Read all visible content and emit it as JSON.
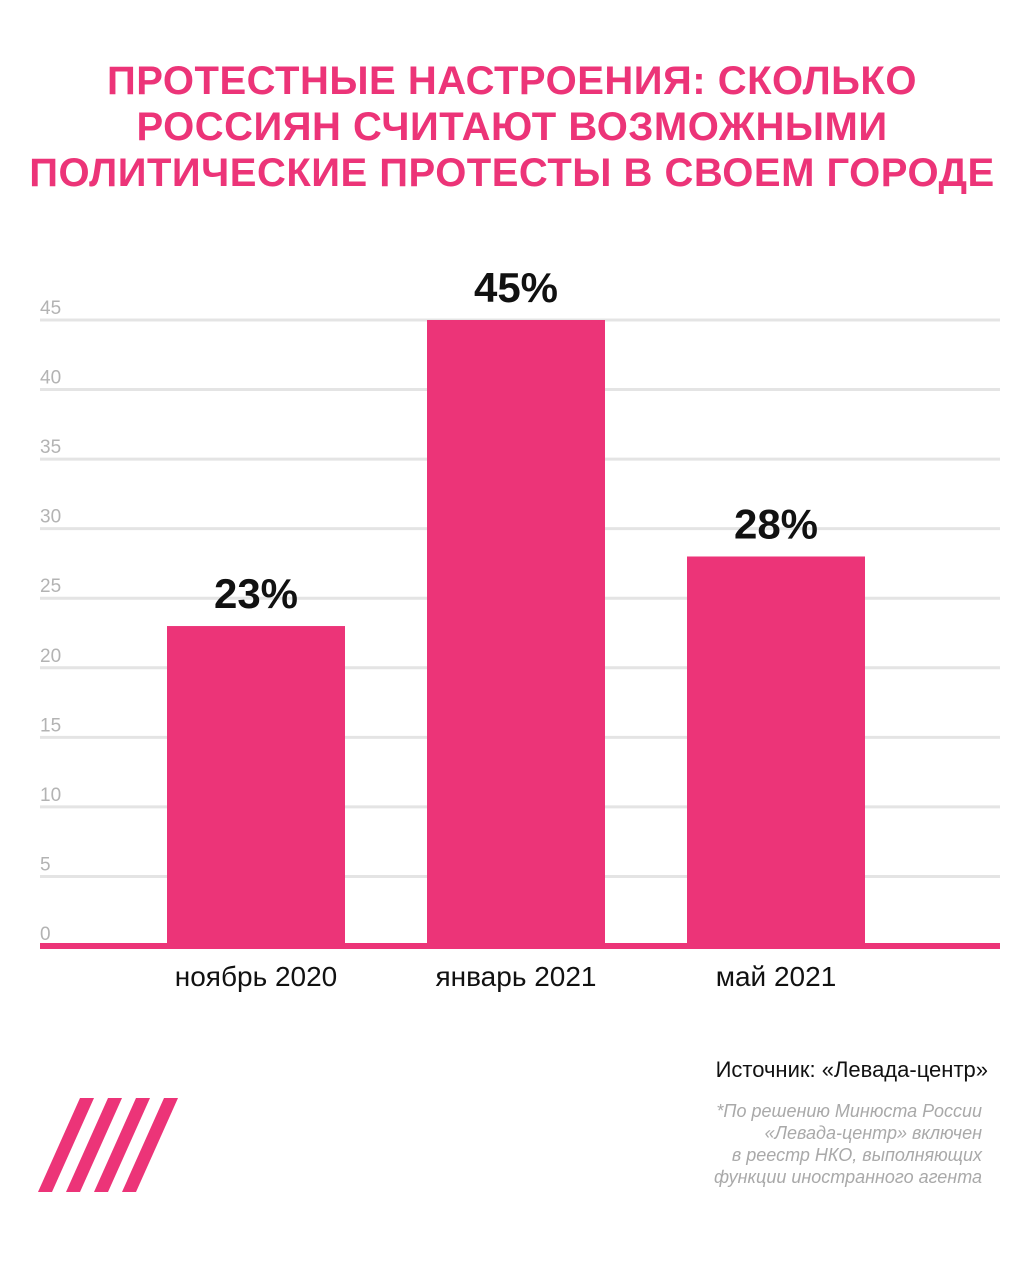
{
  "title_lines": [
    "ПРОТЕСТНЫЕ НАСТРОЕНИЯ: СКОЛЬКО",
    "РОССИЯН СЧИТАЮТ ВОЗМОЖНЫМИ",
    "ПОЛИТИЧЕСКИЕ ПРОТЕСТЫ В СВОЕМ ГОРОДЕ"
  ],
  "colors": {
    "accent": "#ec3478",
    "grid": "#e4e4e4",
    "tick_label": "#b3b3b3",
    "text": "#111111",
    "note": "#a9a9a9"
  },
  "chart_data": {
    "type": "bar",
    "categories": [
      "ноябрь 2020",
      "январь 2021",
      "май 2021"
    ],
    "values": [
      23,
      45,
      28
    ],
    "data_labels": [
      "23%",
      "45%",
      "28%"
    ],
    "y_ticks": [
      0,
      5,
      10,
      15,
      20,
      25,
      30,
      35,
      40,
      45
    ],
    "ylim": [
      0,
      45
    ],
    "grid": true,
    "legend": "none"
  },
  "source": "Источник: «Левада-центр»",
  "note_lines": [
    "*По решению Минюста России",
    "«Левада-центр» включен",
    "в реестр НКО, выполняющих",
    "функции иностранного агента"
  ],
  "logo": "dozhd-stripes-logo"
}
